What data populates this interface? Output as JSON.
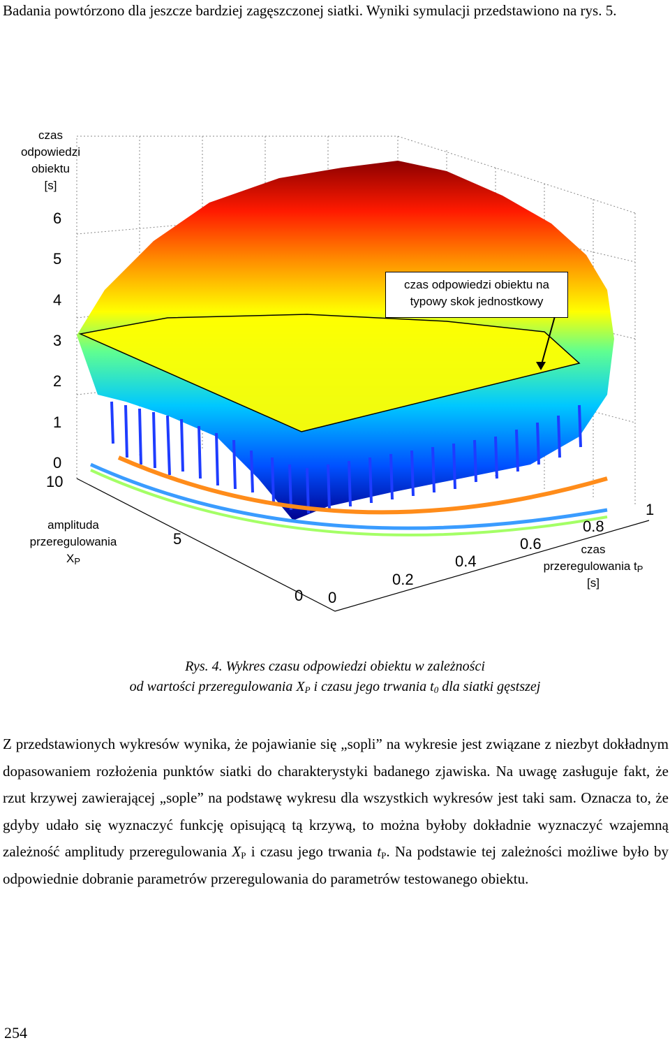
{
  "intro_text": "Badania powtórzono dla jeszcze bardziej zagęszczonej siatki. Wyniki symulacji przedstawiono na rys. 5.",
  "figure": {
    "z_axis_label": "czas odpowiedzi obiektu [s]",
    "z_axis_lines": [
      "czas",
      "odpowiedzi",
      "obiektu",
      "[s]"
    ],
    "y_axis_lines": [
      "amplituda",
      "przeregulowania"
    ],
    "y_axis_symbol": "X",
    "y_axis_sub": "P",
    "x_axis_lines": [
      "czas",
      "przeregulowania t",
      "[s]"
    ],
    "x_axis_sub": "P",
    "callout_lines": [
      "czas odpowiedzi obiektu na",
      "typowy skok jednostkowy"
    ],
    "z_ticks": [
      "6",
      "5",
      "4",
      "3",
      "2",
      "1",
      "0"
    ],
    "y_ticks": [
      "10",
      "5",
      "0"
    ],
    "x_ticks": [
      "0",
      "0.2",
      "0.4",
      "0.6",
      "0.8",
      "1"
    ],
    "colormap": [
      "#00008f",
      "#0050ff",
      "#00c8ff",
      "#60ff90",
      "#ffff00",
      "#ff9000",
      "#ff1a00",
      "#8b0000"
    ]
  },
  "caption": {
    "line1": "Rys. 4. Wykres czasu odpowiedzi obiektu w zależności",
    "line2_a": "od wartości przeregulowania X",
    "line2_sub1": "P",
    "line2_b": " i czasu jego trwania t",
    "line2_sub2": "0",
    "line2_c": " dla siatki gęstszej"
  },
  "body": {
    "p1": "Z przedstawionych wykresów wynika, że pojawianie się „sopli” na wykresie jest związane z niezbyt dokładnym dopasowaniem rozłożenia punktów siatki do charakterystyki badanego zjawiska. Na uwagę zasługuje fakt, że rzut krzywej zawierającej „sople” na podstawę wykresu dla wszystkich wykresów jest taki sam. Oznacza to, że gdyby udało się wyznaczyć funkcję opisującą tą krzywą, to można byłoby dokładnie wyznaczyć wzajemną zależność amplitudy przeregulowania ",
    "sym1": "X",
    "sym1_sub": "P",
    "p2": " i czasu jego trwania ",
    "sym2": "t",
    "sym2_sub": "P",
    "p3": ". Na podstawie tej zależności możliwe było by odpowiednie dobranie parametrów przeregulowania do parametrów testowanego obiektu."
  },
  "page_number": "254"
}
